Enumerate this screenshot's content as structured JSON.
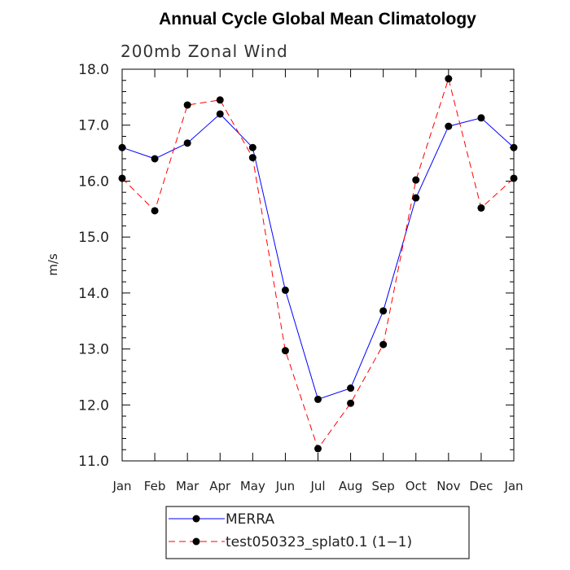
{
  "chart_data": {
    "type": "line",
    "title": "Annual Cycle Global Mean Climatology",
    "subtitle": "200mb Zonal Wind",
    "xlabel": "",
    "ylabel": "m/s",
    "ylim": [
      11.0,
      18.0
    ],
    "yticks": [
      "11.0",
      "12.0",
      "13.0",
      "14.0",
      "15.0",
      "16.0",
      "17.0",
      "18.0"
    ],
    "categories": [
      "Jan",
      "Feb",
      "Mar",
      "Apr",
      "May",
      "Jun",
      "Jul",
      "Aug",
      "Sep",
      "Oct",
      "Nov",
      "Dec",
      "Jan"
    ],
    "series": [
      {
        "name": "MERRA",
        "color": "#0000ff",
        "style": "solid",
        "values": [
          16.6,
          16.4,
          16.68,
          17.2,
          16.6,
          14.05,
          12.1,
          12.3,
          13.68,
          15.7,
          16.98,
          17.13,
          16.6
        ]
      },
      {
        "name": "test050323_splat0.1 (1−1)",
        "color": "#ff0000",
        "style": "dashed",
        "values": [
          16.05,
          15.47,
          17.36,
          17.45,
          16.42,
          12.97,
          11.22,
          12.03,
          13.08,
          16.02,
          17.83,
          15.52,
          16.05
        ]
      }
    ],
    "legend_position": "bottom"
  }
}
